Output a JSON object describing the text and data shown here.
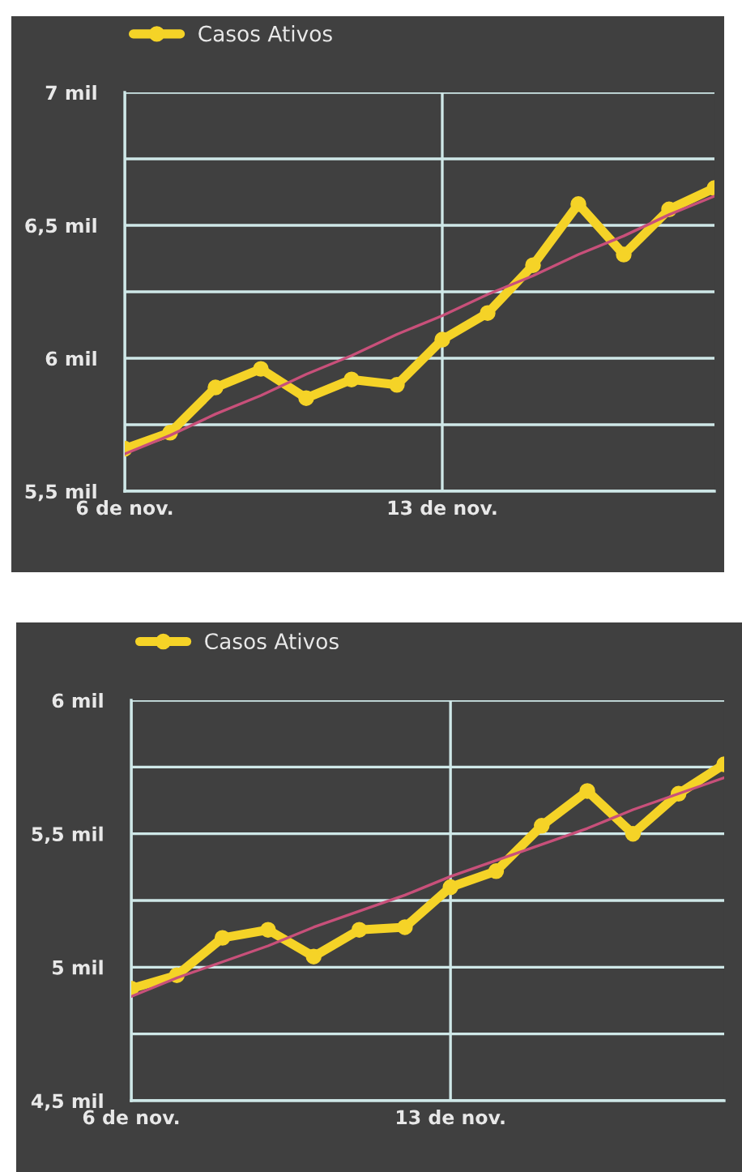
{
  "chart_data": [
    {
      "type": "line",
      "categories": [
        "6 de nov.",
        null,
        null,
        null,
        null,
        null,
        null,
        "13 de nov.",
        null,
        null,
        null,
        null,
        null,
        null
      ],
      "series": [
        {
          "name": "Casos Ativos",
          "color": "#f5d327",
          "marker": "circle",
          "values": [
            5.66,
            5.72,
            5.89,
            5.96,
            5.85,
            5.92,
            5.9,
            6.07,
            6.17,
            6.35,
            6.58,
            6.39,
            6.56,
            6.64
          ]
        },
        {
          "color": "#c8507a",
          "marker": "none",
          "values": [
            5.64,
            5.71,
            5.79,
            5.86,
            5.94,
            6.01,
            6.09,
            6.16,
            6.24,
            6.31,
            6.39,
            6.46,
            6.54,
            6.61
          ]
        }
      ],
      "ylim": [
        5.5,
        7
      ],
      "yticks": [
        {
          "value": 5.5,
          "label": "5,5 mil"
        },
        {
          "value": 5.75,
          "label": null
        },
        {
          "value": 6,
          "label": "6 mil"
        },
        {
          "value": 6.25,
          "label": null
        },
        {
          "value": 6.5,
          "label": "6,5 mil"
        },
        {
          "value": 6.75,
          "label": null
        },
        {
          "value": 7,
          "label": "7 mil"
        }
      ],
      "grid": true,
      "legend": "top left",
      "line_style": "solid"
    },
    {
      "type": "line",
      "categories": [
        "6 de nov.",
        null,
        null,
        null,
        null,
        null,
        null,
        "13 de nov.",
        null,
        null,
        null,
        null,
        null,
        null
      ],
      "series": [
        {
          "name": "Casos Ativos",
          "color": "#f5d327",
          "marker": "circle",
          "values": [
            4.92,
            4.97,
            5.11,
            5.14,
            5.04,
            5.14,
            5.15,
            5.3,
            5.36,
            5.53,
            5.66,
            5.5,
            5.65,
            5.76
          ]
        },
        {
          "color": "#c8507a",
          "marker": "none",
          "values": [
            4.89,
            4.96,
            5.02,
            5.08,
            5.15,
            5.21,
            5.27,
            5.34,
            5.4,
            5.46,
            5.52,
            5.59,
            5.65,
            5.71
          ]
        }
      ],
      "ylim": [
        4.5,
        6
      ],
      "yticks": [
        {
          "value": 4.5,
          "label": "4,5 mil"
        },
        {
          "value": 4.75,
          "label": null
        },
        {
          "value": 5,
          "label": "5 mil"
        },
        {
          "value": 5.25,
          "label": null
        },
        {
          "value": 5.5,
          "label": "5,5 mil"
        },
        {
          "value": 5.75,
          "label": null
        },
        {
          "value": 6,
          "label": "6 mil"
        }
      ],
      "grid": true,
      "legend": "top left",
      "line_style": "solid"
    }
  ]
}
